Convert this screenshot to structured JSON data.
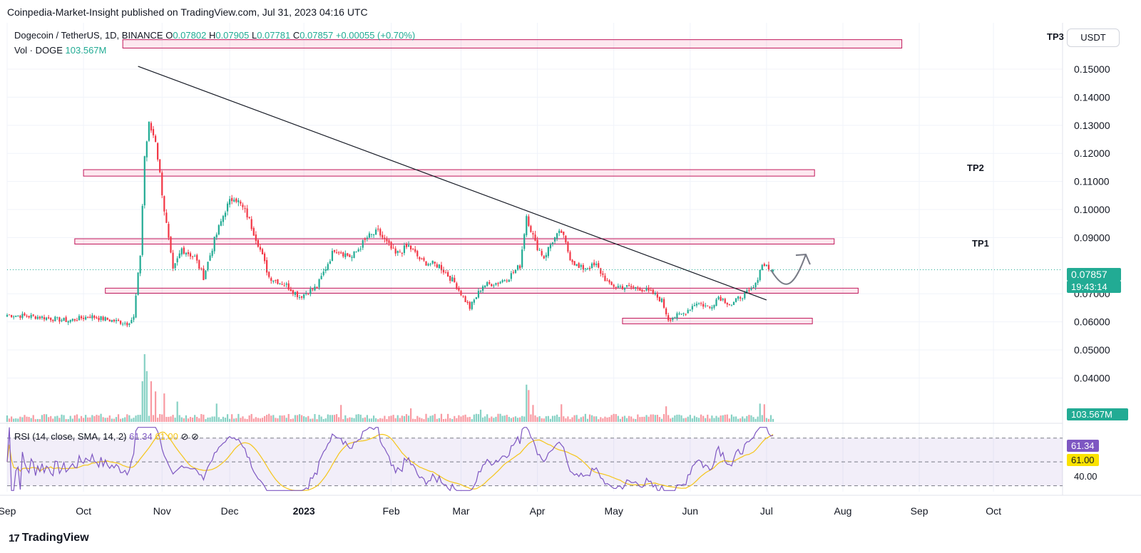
{
  "publisher_line": "Coinpedia-Market-Insight published on TradingView.com, Jul 31, 2023 04:16 UTC",
  "legend": {
    "symbol": "Dogecoin / TetherUS, 1D, BINANCE",
    "o_label": "O",
    "o": "0.07802",
    "h_label": "H",
    "h": "0.07905",
    "l_label": "L",
    "l": "0.07781",
    "c_label": "C",
    "c": "0.07857",
    "change": "+0.00055 (+0.70%)",
    "vol_label": "Vol · DOGE",
    "vol_value": "103.567M"
  },
  "rsi_legend": {
    "label": "RSI (14, close, SMA, 14, 2)",
    "rsi_value": "61.34",
    "sma_value": "61.00",
    "icon1": "eye-off-icon",
    "icon2": "eye-off-icon"
  },
  "currency": "USDT",
  "price_tags": {
    "last_price": "0.07857",
    "countdown": "19:43:14",
    "volume": "103.567M",
    "rsi": "61.34",
    "rsi_sma": "61.00",
    "rsi_level": "40.00"
  },
  "targets": {
    "tp1": "TP1",
    "tp2": "TP2",
    "tp3": "TP3"
  },
  "branding": {
    "logo_text": "TradingView",
    "logo_mark": "17"
  },
  "colors": {
    "up": "#22ab94",
    "down": "#f23645",
    "zone": "#c2185b",
    "rsi": "#7e57c2",
    "rsi_sma": "#f5c518",
    "tag_green": "#22ab94",
    "tag_purple": "#7e57c2",
    "tag_yellow": "#fbe200"
  },
  "chart_data": {
    "type": "candlestick",
    "x_ticks": [
      "Sep",
      "Oct",
      "Nov",
      "Dec",
      "2023",
      "Feb",
      "Mar",
      "Apr",
      "May",
      "Jun",
      "Jul",
      "Aug",
      "Sep",
      "Oct"
    ],
    "y_ticks": [
      "0.15000",
      "0.14000",
      "0.13000",
      "0.12000",
      "0.11000",
      "0.10000",
      "0.09000",
      "0.07000",
      "0.06000",
      "0.05000",
      "0.04000"
    ],
    "ylim": [
      0.0325,
      0.1665
    ],
    "rsi_ylim": [
      25,
      80
    ],
    "rsi_levels": [
      30,
      50,
      70
    ],
    "grid": true,
    "anchors": [
      {
        "day": 0,
        "price": 0.0625
      },
      {
        "day": 14,
        "price": 0.0618
      },
      {
        "day": 28,
        "price": 0.0604
      },
      {
        "day": 38,
        "price": 0.062
      },
      {
        "day": 48,
        "price": 0.0605
      },
      {
        "day": 55,
        "price": 0.0595
      },
      {
        "day": 58,
        "price": 0.0615
      },
      {
        "day": 61,
        "price": 0.084
      },
      {
        "day": 63,
        "price": 0.119
      },
      {
        "day": 65,
        "price": 0.13
      },
      {
        "day": 68,
        "price": 0.125
      },
      {
        "day": 72,
        "price": 0.1
      },
      {
        "day": 76,
        "price": 0.078
      },
      {
        "day": 80,
        "price": 0.086
      },
      {
        "day": 86,
        "price": 0.083
      },
      {
        "day": 90,
        "price": 0.076
      },
      {
        "day": 95,
        "price": 0.089
      },
      {
        "day": 100,
        "price": 0.1
      },
      {
        "day": 104,
        "price": 0.105
      },
      {
        "day": 110,
        "price": 0.098
      },
      {
        "day": 115,
        "price": 0.088
      },
      {
        "day": 120,
        "price": 0.076
      },
      {
        "day": 128,
        "price": 0.073
      },
      {
        "day": 134,
        "price": 0.069
      },
      {
        "day": 142,
        "price": 0.0725
      },
      {
        "day": 150,
        "price": 0.086
      },
      {
        "day": 158,
        "price": 0.083
      },
      {
        "day": 165,
        "price": 0.09
      },
      {
        "day": 170,
        "price": 0.092
      },
      {
        "day": 178,
        "price": 0.084
      },
      {
        "day": 184,
        "price": 0.087
      },
      {
        "day": 190,
        "price": 0.0815
      },
      {
        "day": 198,
        "price": 0.08
      },
      {
        "day": 205,
        "price": 0.074
      },
      {
        "day": 212,
        "price": 0.065
      },
      {
        "day": 218,
        "price": 0.073
      },
      {
        "day": 225,
        "price": 0.074
      },
      {
        "day": 230,
        "price": 0.076
      },
      {
        "day": 235,
        "price": 0.08
      },
      {
        "day": 238,
        "price": 0.098
      },
      {
        "day": 242,
        "price": 0.088
      },
      {
        "day": 246,
        "price": 0.083
      },
      {
        "day": 250,
        "price": 0.089
      },
      {
        "day": 254,
        "price": 0.092
      },
      {
        "day": 258,
        "price": 0.083
      },
      {
        "day": 262,
        "price": 0.079
      },
      {
        "day": 270,
        "price": 0.08
      },
      {
        "day": 276,
        "price": 0.073
      },
      {
        "day": 282,
        "price": 0.0725
      },
      {
        "day": 290,
        "price": 0.072
      },
      {
        "day": 296,
        "price": 0.07
      },
      {
        "day": 300,
        "price": 0.0675
      },
      {
        "day": 303,
        "price": 0.061
      },
      {
        "day": 310,
        "price": 0.063
      },
      {
        "day": 316,
        "price": 0.067
      },
      {
        "day": 322,
        "price": 0.065
      },
      {
        "day": 326,
        "price": 0.069
      },
      {
        "day": 332,
        "price": 0.066
      },
      {
        "day": 336,
        "price": 0.069
      },
      {
        "day": 340,
        "price": 0.0705
      },
      {
        "day": 343,
        "price": 0.073
      },
      {
        "day": 345,
        "price": 0.079
      },
      {
        "day": 347,
        "price": 0.081
      },
      {
        "day": 349,
        "price": 0.079
      },
      {
        "day": 351,
        "price": 0.0786
      }
    ],
    "volume_peaks": [
      {
        "day": 62,
        "value": 0.6
      },
      {
        "day": 63,
        "value": 1.0
      },
      {
        "day": 64,
        "value": 0.75
      },
      {
        "day": 66,
        "value": 0.6
      },
      {
        "day": 68,
        "value": 0.45
      },
      {
        "day": 72,
        "value": 0.42
      },
      {
        "day": 78,
        "value": 0.3
      },
      {
        "day": 96,
        "value": 0.27
      },
      {
        "day": 153,
        "value": 0.25
      },
      {
        "day": 185,
        "value": 0.2
      },
      {
        "day": 217,
        "value": 0.18
      },
      {
        "day": 238,
        "value": 0.55
      },
      {
        "day": 239,
        "value": 0.47
      },
      {
        "day": 241,
        "value": 0.25
      },
      {
        "day": 254,
        "value": 0.26
      },
      {
        "day": 302,
        "value": 0.23
      },
      {
        "day": 345,
        "value": 0.27
      },
      {
        "day": 347,
        "value": 0.26
      }
    ],
    "levels": [
      {
        "name": "TP3 zone",
        "from": 0.1575,
        "to": 0.1605,
        "start_day": 53,
        "end_day": 410
      },
      {
        "name": "TP2 zone",
        "from": 0.1119,
        "to": 0.1142,
        "start_day": 35,
        "end_day": 370
      },
      {
        "name": "TP1 zone",
        "from": 0.0877,
        "to": 0.0896,
        "start_day": 31,
        "end_day": 379
      },
      {
        "name": "support zone",
        "from": 0.0702,
        "to": 0.072,
        "start_day": 45,
        "end_day": 390
      },
      {
        "name": "lower support zone",
        "from": 0.0593,
        "to": 0.0613,
        "start_day": 282,
        "end_day": 369
      }
    ],
    "trendline": {
      "start": {
        "day": 60,
        "price": 0.151
      },
      "end": {
        "day": 348,
        "price": 0.0678
      }
    },
    "projection": [
      {
        "day": 350,
        "price": 0.0785
      },
      {
        "day": 356,
        "price": 0.071
      },
      {
        "day": 360,
        "price": 0.071
      },
      {
        "day": 366,
        "price": 0.084
      },
      {
        "day": 368,
        "price": 0.078
      }
    ]
  }
}
